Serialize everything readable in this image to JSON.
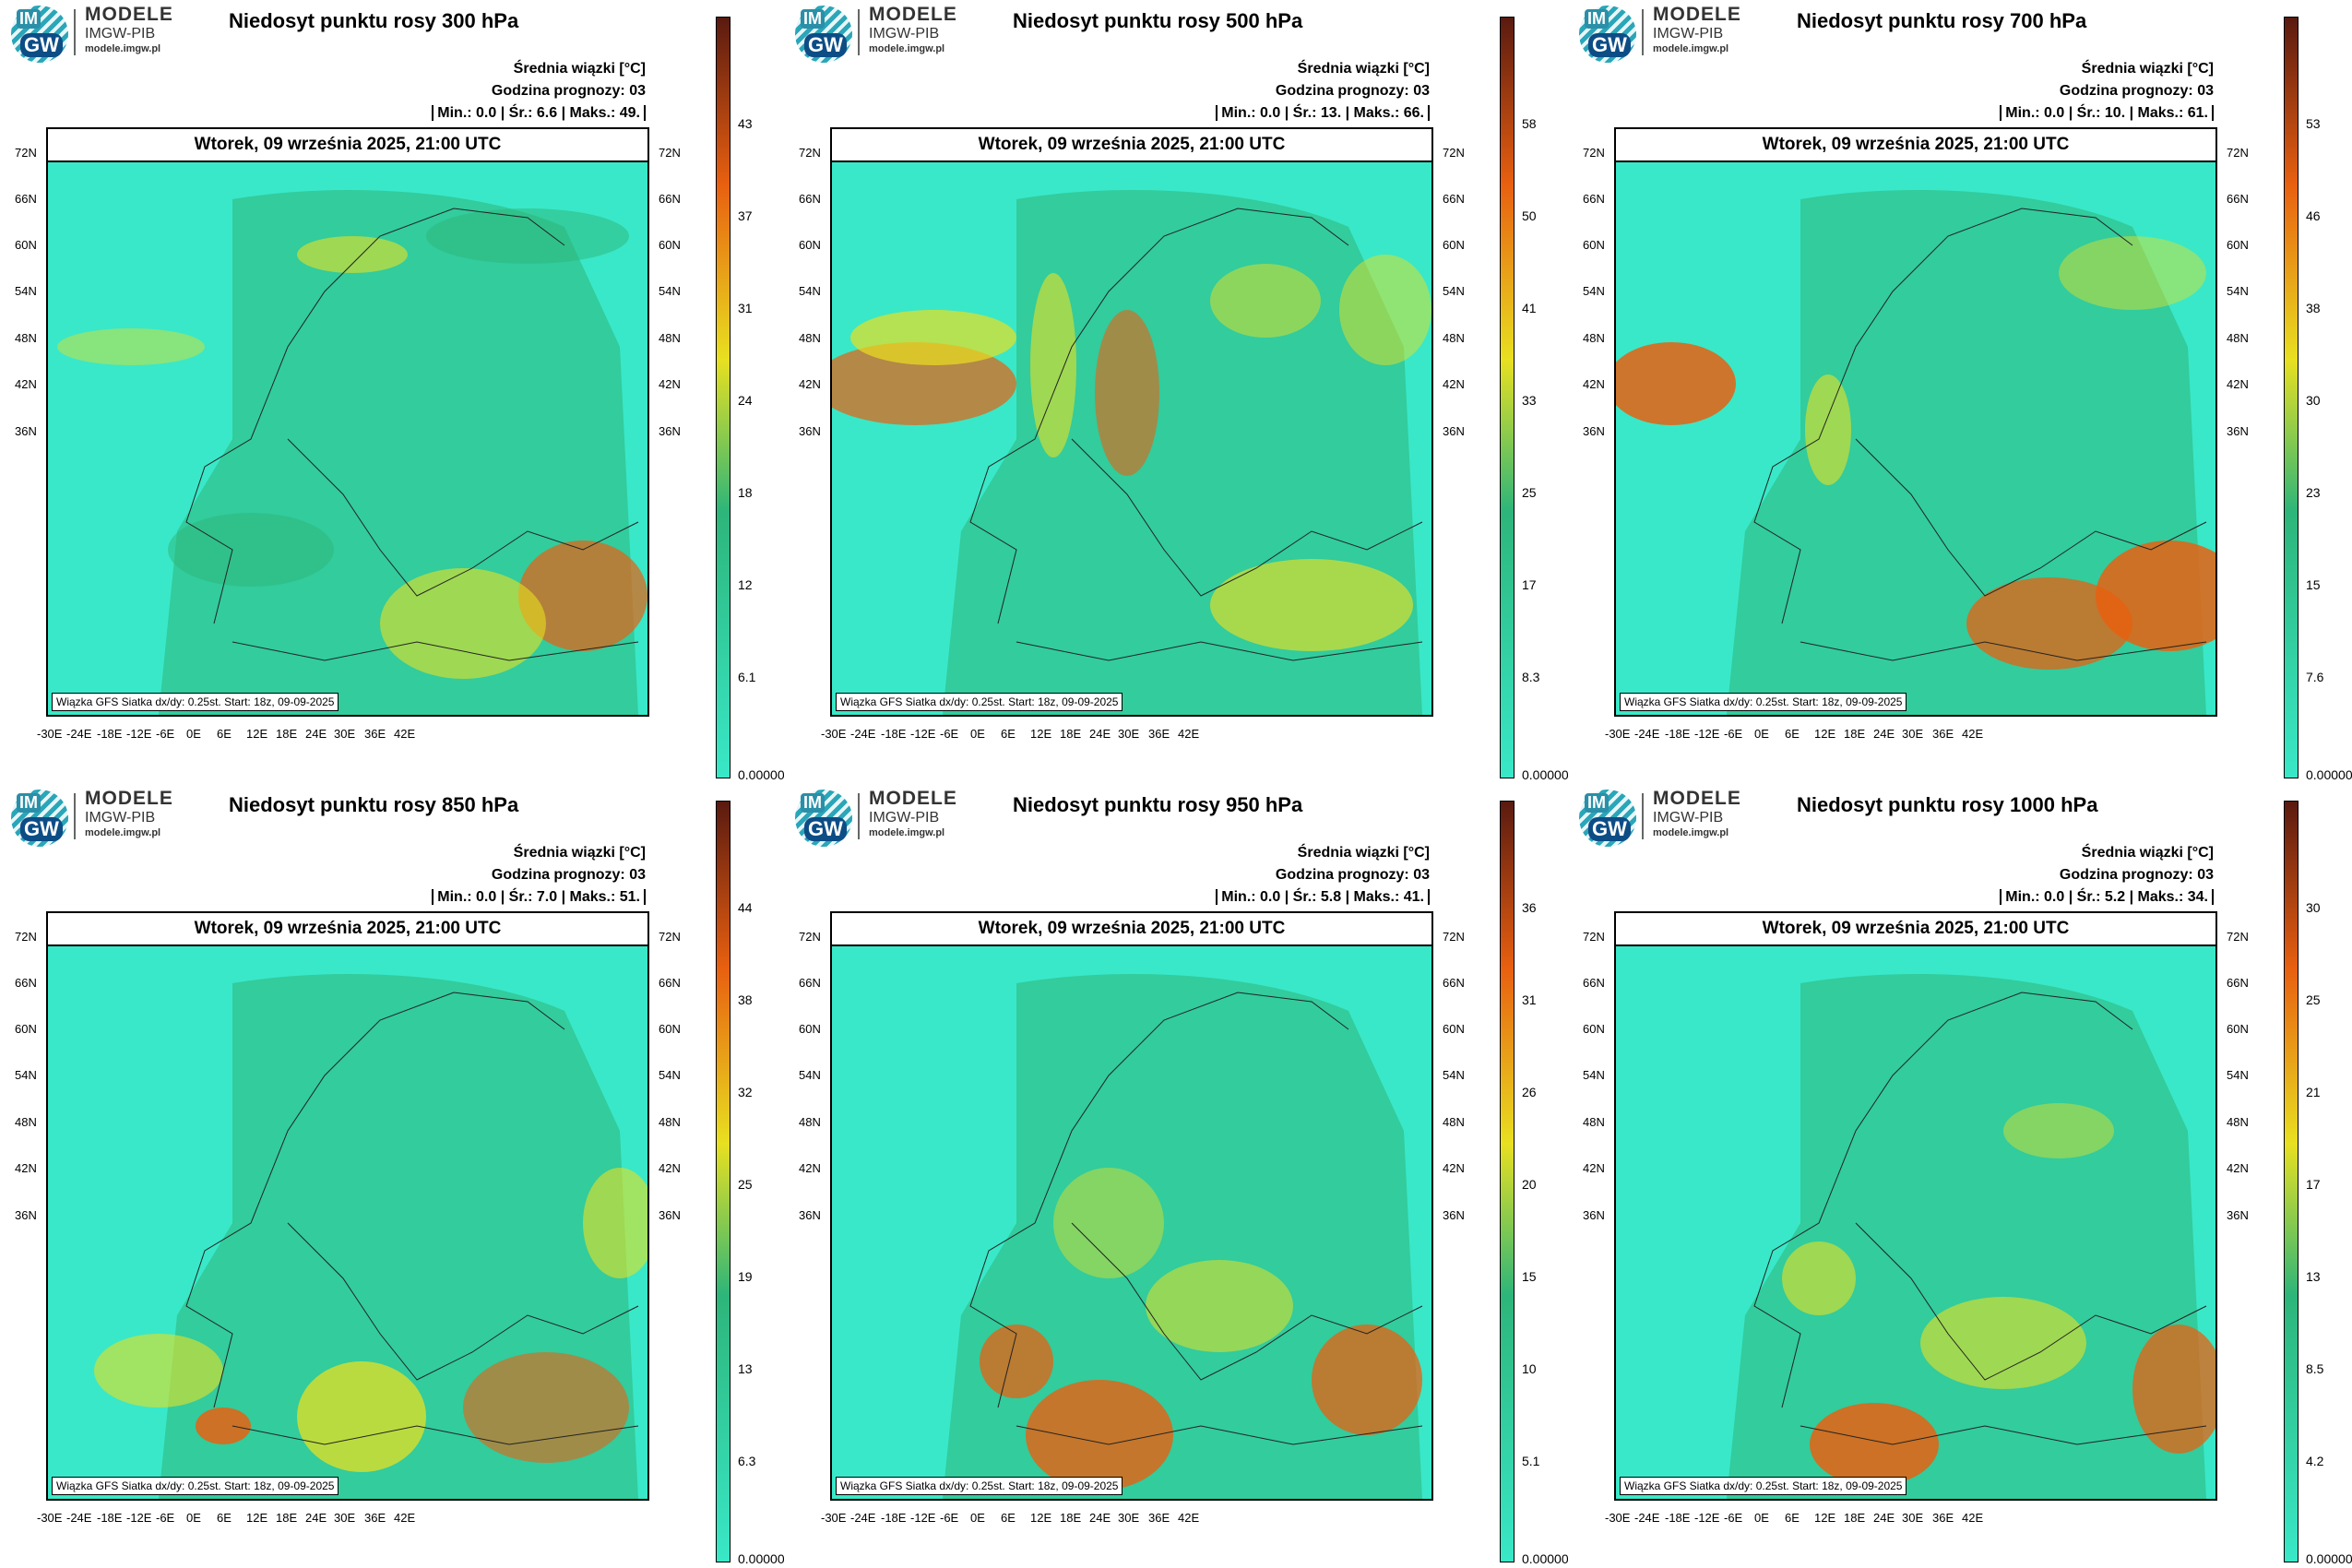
{
  "logo": {
    "im": "IM",
    "gw": "GW",
    "line1": "MODELE",
    "line2": "IMGW-PIB",
    "line3": "modele.imgw.pl"
  },
  "common": {
    "mean_label": "Średnia wiązki [°C]",
    "forecast_hour_label": "Godzina prognozy: 03",
    "date_line": "Wtorek, 09 września 2025, 21:00 UTC",
    "footer": "Wiązka GFS Siatka dx/dy: 0.25st. Start: 18z, 09-09-2025",
    "lat_labels": [
      "72N",
      "66N",
      "60N",
      "54N",
      "48N",
      "42N",
      "36N"
    ],
    "lon_labels": [
      "-30E",
      "-24E",
      "-18E",
      "-12E",
      "-6E",
      "0E",
      "6E",
      "12E",
      "18E",
      "24E",
      "30E",
      "36E",
      "42E"
    ],
    "colorbar_min": "0.00000",
    "colors": {
      "low": "#39e8c8",
      "mid": "#2db57a",
      "high_mid": "#e8e020",
      "high": "#e86010",
      "max": "#5a1a10"
    }
  },
  "panels": [
    {
      "title": "Niedosyt punktu rosy 300 hPa",
      "min": "0.0",
      "mean": "6.6",
      "max": "49.",
      "ticks": [
        "43",
        "37",
        "31",
        "24",
        "18",
        "12",
        "6.1"
      ]
    },
    {
      "title": "Niedosyt punktu rosy 500 hPa",
      "min": "0.0",
      "mean": "13.",
      "max": "66.",
      "ticks": [
        "58",
        "50",
        "41",
        "33",
        "25",
        "17",
        "8.3"
      ]
    },
    {
      "title": "Niedosyt punktu rosy 700 hPa",
      "min": "0.0",
      "mean": "10.",
      "max": "61.",
      "ticks": [
        "53",
        "46",
        "38",
        "30",
        "23",
        "15",
        "7.6"
      ]
    },
    {
      "title": "Niedosyt punktu rosy 850 hPa",
      "min": "0.0",
      "mean": "7.0",
      "max": "51.",
      "ticks": [
        "44",
        "38",
        "32",
        "25",
        "19",
        "13",
        "6.3"
      ]
    },
    {
      "title": "Niedosyt punktu rosy 950 hPa",
      "min": "0.0",
      "mean": "5.8",
      "max": "41.",
      "ticks": [
        "36",
        "31",
        "26",
        "20",
        "15",
        "10",
        "5.1"
      ]
    },
    {
      "title": "Niedosyt punktu rosy 1000 hPa",
      "min": "0.0",
      "mean": "5.2",
      "max": "34.",
      "ticks": [
        "30",
        "25",
        "21",
        "17",
        "13",
        "8.5",
        "4.2"
      ]
    }
  ]
}
